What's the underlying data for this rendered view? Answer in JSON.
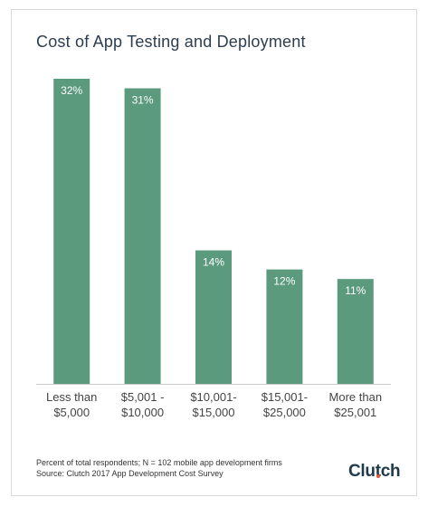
{
  "title": "Cost of App Testing and Deployment",
  "footnote": "Percent of total respondents; N = 102 mobile app development firms",
  "source": "Source: Clutch 2017 App Development Cost Survey",
  "brand": "Clutch",
  "colors": {
    "bar": "#5b9a7d",
    "title": "#2c3e50",
    "brand": "#1f3a4a",
    "brand_accent": "#e5533c"
  },
  "chart_data": {
    "type": "bar",
    "title": "Cost of App Testing and Deployment",
    "categories": [
      [
        "Less than",
        "$5,000"
      ],
      [
        "$5,001 -",
        "$10,000"
      ],
      [
        "$10,001-",
        "$15,000"
      ],
      [
        "$15,001-",
        "$25,000"
      ],
      [
        "More than",
        "$25,001"
      ]
    ],
    "values": [
      32,
      31,
      14,
      12,
      11
    ],
    "data_labels": [
      "32%",
      "31%",
      "14%",
      "12%",
      "11%"
    ],
    "unit": "%",
    "ylim": [
      0,
      32
    ],
    "grid": false,
    "legend": "none"
  }
}
